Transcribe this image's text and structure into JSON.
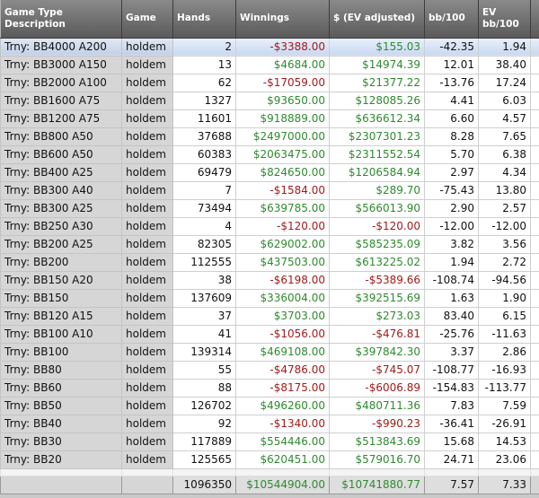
{
  "table": {
    "headers": [
      "Game Type Description",
      "Game",
      "Hands",
      "Winnings",
      "$ (EV adjusted)",
      "bb/100",
      "EV bb/100"
    ],
    "rows": [
      [
        "Trny: BB4000 A200",
        "holdem",
        "2",
        "-$3388.00",
        "$155.03",
        "-42.35",
        "1.94"
      ],
      [
        "Trny: BB3000 A150",
        "holdem",
        "13",
        "$4684.00",
        "$14974.39",
        "12.01",
        "38.40"
      ],
      [
        "Trny: BB2000 A100",
        "holdem",
        "62",
        "-$17059.00",
        "$21377.22",
        "-13.76",
        "17.24"
      ],
      [
        "Trny: BB1600 A75",
        "holdem",
        "1327",
        "$93650.00",
        "$128085.26",
        "4.41",
        "6.03"
      ],
      [
        "Trny: BB1200 A75",
        "holdem",
        "11601",
        "$918889.00",
        "$636612.34",
        "6.60",
        "4.57"
      ],
      [
        "Trny: BB800 A50",
        "holdem",
        "37688",
        "$2497000.00",
        "$2307301.23",
        "8.28",
        "7.65"
      ],
      [
        "Trny: BB600 A50",
        "holdem",
        "60383",
        "$2063475.00",
        "$2311552.54",
        "5.70",
        "6.38"
      ],
      [
        "Trny: BB400 A25",
        "holdem",
        "69479",
        "$824650.00",
        "$1206584.94",
        "2.97",
        "4.34"
      ],
      [
        "Trny: BB300 A40",
        "holdem",
        "7",
        "-$1584.00",
        "$289.70",
        "-75.43",
        "13.80"
      ],
      [
        "Trny: BB300 A25",
        "holdem",
        "73494",
        "$639785.00",
        "$566013.90",
        "2.90",
        "2.57"
      ],
      [
        "Trny: BB250 A30",
        "holdem",
        "4",
        "-$120.00",
        "-$120.00",
        "-12.00",
        "-12.00"
      ],
      [
        "Trny: BB200 A25",
        "holdem",
        "82305",
        "$629002.00",
        "$585235.09",
        "3.82",
        "3.56"
      ],
      [
        "Trny: BB200",
        "holdem",
        "112555",
        "$437503.00",
        "$613225.02",
        "1.94",
        "2.72"
      ],
      [
        "Trny: BB150 A20",
        "holdem",
        "38",
        "-$6198.00",
        "-$5389.66",
        "-108.74",
        "-94.56"
      ],
      [
        "Trny: BB150",
        "holdem",
        "137609",
        "$336004.00",
        "$392515.69",
        "1.63",
        "1.90"
      ],
      [
        "Trny: BB120 A15",
        "holdem",
        "37",
        "$3703.00",
        "$273.03",
        "83.40",
        "6.15"
      ],
      [
        "Trny: BB100 A10",
        "holdem",
        "41",
        "-$1056.00",
        "-$476.81",
        "-25.76",
        "-11.63"
      ],
      [
        "Trny: BB100",
        "holdem",
        "139314",
        "$469108.00",
        "$397842.30",
        "3.37",
        "2.86"
      ],
      [
        "Trny: BB80",
        "holdem",
        "55",
        "-$4786.00",
        "-$745.07",
        "-108.77",
        "-16.93"
      ],
      [
        "Trny: BB60",
        "holdem",
        "88",
        "-$8175.00",
        "-$6006.89",
        "-154.83",
        "-113.77"
      ],
      [
        "Trny: BB50",
        "holdem",
        "126702",
        "$496260.00",
        "$480711.36",
        "7.83",
        "7.59"
      ],
      [
        "Trny: BB40",
        "holdem",
        "92",
        "-$1340.00",
        "-$990.23",
        "-36.41",
        "-26.91"
      ],
      [
        "Trny: BB30",
        "holdem",
        "117889",
        "$554446.00",
        "$513843.69",
        "15.68",
        "14.53"
      ],
      [
        "Trny: BB20",
        "holdem",
        "125565",
        "$620451.00",
        "$579016.70",
        "24.71",
        "23.06"
      ]
    ],
    "totals": [
      "1096350",
      "$10544904.00",
      "$10741880.77",
      "7.57",
      "7.33"
    ]
  }
}
